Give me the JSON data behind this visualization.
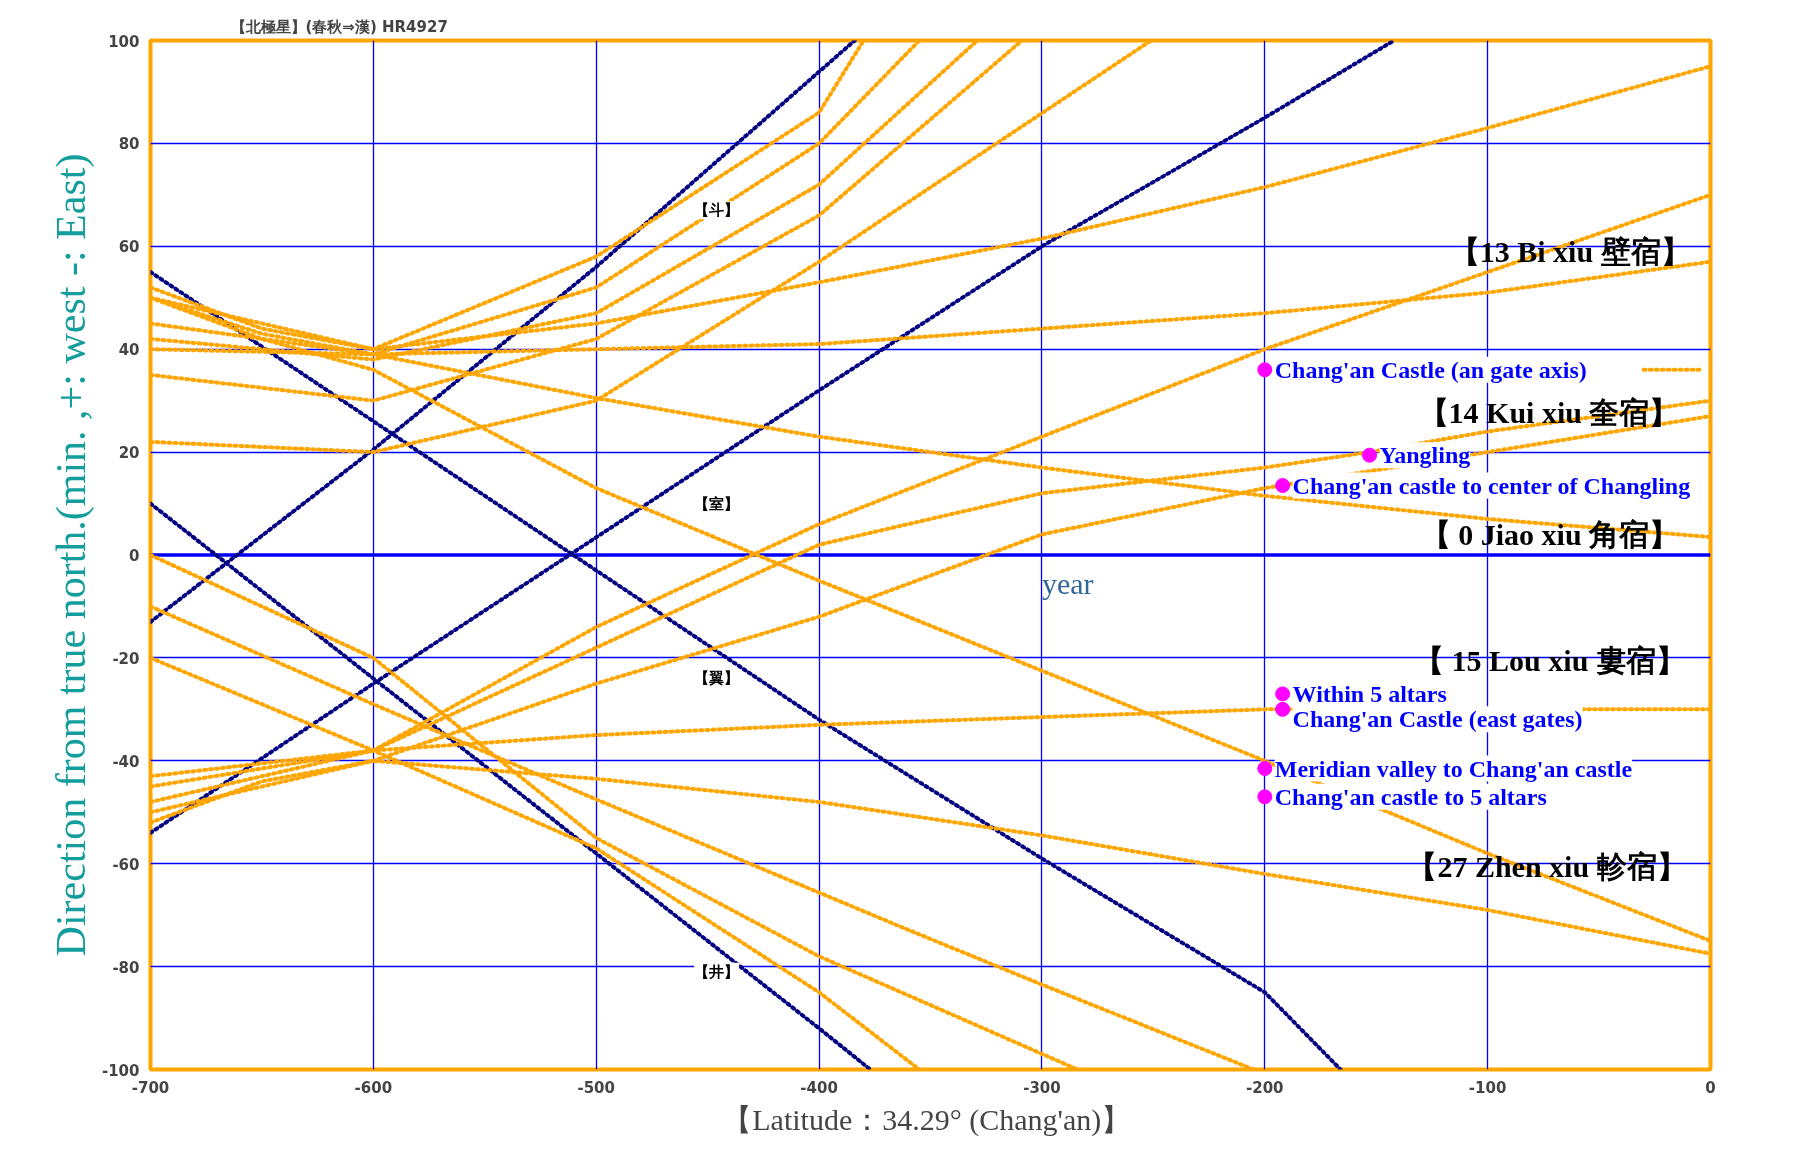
{
  "chart_data": {
    "type": "line",
    "title": "【北極星】(春秋⇒漢) HR4927",
    "xlabel": "year",
    "ylabel": "Direction from true north.(min. ,+: west -: East)",
    "xlim": [
      -700,
      0
    ],
    "ylim": [
      -100,
      100
    ],
    "xticks": [
      -700,
      -600,
      -500,
      -400,
      -300,
      -200,
      -100,
      0
    ],
    "yticks": [
      -100,
      -80,
      -60,
      -40,
      -20,
      0,
      20,
      40,
      60,
      80,
      100
    ],
    "ref_lines": [
      {
        "axis": "y",
        "value": 0,
        "color": "#0000ff",
        "line_style": "solid"
      }
    ],
    "grid": true,
    "marker": "none",
    "line_style": "dotted",
    "series": [
      {
        "color": "#000080",
        "x": [
          -700,
          -600,
          -500,
          -400,
          -300,
          -200,
          -166
        ],
        "values": [
          55,
          26,
          -3,
          -32,
          -59,
          -85,
          -100
        ]
      },
      {
        "color": "#000080",
        "x": [
          -700,
          -600,
          -500,
          -400,
          -377
        ],
        "values": [
          10,
          -24,
          -58,
          -92,
          -100
        ]
      },
      {
        "color": "#000080",
        "x": [
          -700,
          -600,
          -500,
          -384
        ],
        "values": [
          -13,
          20.5,
          56,
          100
        ]
      },
      {
        "color": "#000080",
        "x": [
          -700,
          -600,
          -512,
          -400,
          -300,
          -200,
          -142
        ],
        "values": [
          -54,
          -25,
          0,
          32,
          60,
          85,
          100
        ]
      },
      {
        "color": "#ffa500",
        "x": [
          -700,
          -650,
          -600,
          -500,
          -400,
          -300,
          -200,
          -100,
          0
        ],
        "values": [
          52,
          44,
          40,
          45,
          53,
          61.5,
          71.5,
          83,
          95
        ]
      },
      {
        "color": "#ffa500",
        "x": [
          -700,
          -600,
          -500,
          -400,
          -300,
          -200,
          -100,
          0
        ],
        "values": [
          -48,
          -38,
          -14,
          6,
          23,
          40,
          55,
          70
        ]
      },
      {
        "color": "#ffa500",
        "x": [
          -700,
          -600,
          -500,
          -400,
          -300,
          -200,
          -100,
          0
        ],
        "values": [
          40,
          39,
          40,
          41,
          44,
          47,
          51,
          57
        ]
      },
      {
        "color": "#ffa500",
        "x": [
          -30,
          -5
        ],
        "values": [
          36,
          36
        ]
      },
      {
        "color": "#ffa500",
        "x": [
          -700,
          -650,
          -600,
          -500,
          -400,
          -300,
          -200,
          -100,
          0
        ],
        "values": [
          50,
          43,
          39,
          30.5,
          23,
          17,
          11.5,
          7,
          3.5
        ]
      },
      {
        "color": "#ffa500",
        "x": [
          -700,
          -600,
          -500,
          -400,
          -300,
          -200,
          -153,
          -100,
          0
        ],
        "values": [
          -45,
          -38,
          -18,
          2,
          12,
          17,
          20,
          24,
          30
        ]
      },
      {
        "color": "#ffa500",
        "x": [
          -700,
          -600,
          -500,
          -400,
          -300,
          -200,
          -100,
          0
        ],
        "values": [
          -50,
          -40,
          -25,
          -12,
          4,
          13,
          20,
          27
        ]
      },
      {
        "color": "#ffa500",
        "x": [
          -700,
          -600,
          -500,
          -400,
          -300,
          -200,
          0
        ],
        "values": [
          -43,
          -38,
          -35,
          -33,
          -31.5,
          -30,
          -30
        ]
      },
      {
        "color": "#ffa500",
        "x": [
          -700,
          -650,
          -600,
          -500,
          -400,
          -300,
          -200,
          -100,
          0
        ],
        "values": [
          50,
          42,
          36,
          13,
          -5,
          -22.5,
          -40,
          -58,
          -75
        ]
      },
      {
        "color": "#ffa500",
        "x": [
          -700,
          -650,
          -600,
          -500,
          -400,
          -300,
          -200,
          -100,
          0
        ],
        "values": [
          -52,
          -44,
          -40,
          -43.5,
          -48,
          -54.5,
          -62,
          -69,
          -77.5
        ]
      },
      {
        "color": "#ffa500",
        "x": [
          -700,
          -600,
          -500,
          -362,
          -300,
          -205
        ],
        "values": [
          -10,
          -29,
          -47.5,
          -72.5,
          -83.5,
          -100
        ]
      },
      {
        "color": "#ffa500",
        "x": [
          -700,
          -600,
          -500,
          -400,
          -284
        ],
        "values": [
          0,
          -20,
          -55,
          -78,
          -100
        ]
      },
      {
        "color": "#ffa500",
        "x": [
          -700,
          -600,
          -500,
          -400,
          -355
        ],
        "values": [
          -20,
          -38,
          -57,
          -85,
          -100
        ]
      },
      {
        "color": "#ffa500",
        "x": [
          -700,
          -600,
          -500,
          -400,
          -380
        ],
        "values": [
          50,
          40,
          58,
          86,
          100
        ]
      },
      {
        "color": "#ffa500",
        "x": [
          -700,
          -600,
          -500,
          -400,
          -355
        ],
        "values": [
          45,
          39,
          52,
          80,
          100
        ]
      },
      {
        "color": "#ffa500",
        "x": [
          -700,
          -600,
          -500,
          -400,
          -329
        ],
        "values": [
          42,
          38,
          47,
          72,
          100
        ]
      },
      {
        "color": "#ffa500",
        "x": [
          -700,
          -600,
          -500,
          -400,
          -309
        ],
        "values": [
          35,
          30,
          42,
          66,
          100
        ]
      },
      {
        "color": "#ffa500",
        "x": [
          -700,
          -600,
          -500,
          -400,
          -362,
          -251
        ],
        "values": [
          22,
          20,
          30,
          57,
          68,
          100
        ]
      },
      {
        "type": "scatter",
        "marker": "circle",
        "color": "#ff00ff",
        "x": [
          -200,
          -153,
          -192,
          -192,
          -192,
          -200,
          -200
        ],
        "values": [
          36,
          19.4,
          13.5,
          -27,
          -30,
          -41.5,
          -47
        ]
      }
    ],
    "annotations": [
      {
        "text": "Chang'an Castle (an gate axis)",
        "x": -200,
        "y": 36
      },
      {
        "text": "Yangling",
        "x": -153,
        "y": 19.4
      },
      {
        "text": "Chang'an castle to center of Changling",
        "x": -192,
        "y": 13.5
      },
      {
        "text": "Within 5 altars",
        "x": -192,
        "y": -27
      },
      {
        "text": "Chang'an Castle (east gates)",
        "x": -192,
        "y": -30
      },
      {
        "text": "Meridian valley to Chang'an castle",
        "x": -200,
        "y": -41.5
      },
      {
        "text": "Chang'an castle to 5 altars",
        "x": -200,
        "y": -47
      },
      "【13 Bi xiu 壁宿】",
      "【14 Kui xiu 奎宿】",
      "【 0 Jiao xiu 角宿】",
      "【 15 Lou xiu 婁宿】",
      "【27 Zhen xiu 軫宿】",
      "【斗】",
      "【室】",
      "【翼】",
      "【井】",
      "【Latitude：34.29°  (Chang'an)】"
    ]
  }
}
